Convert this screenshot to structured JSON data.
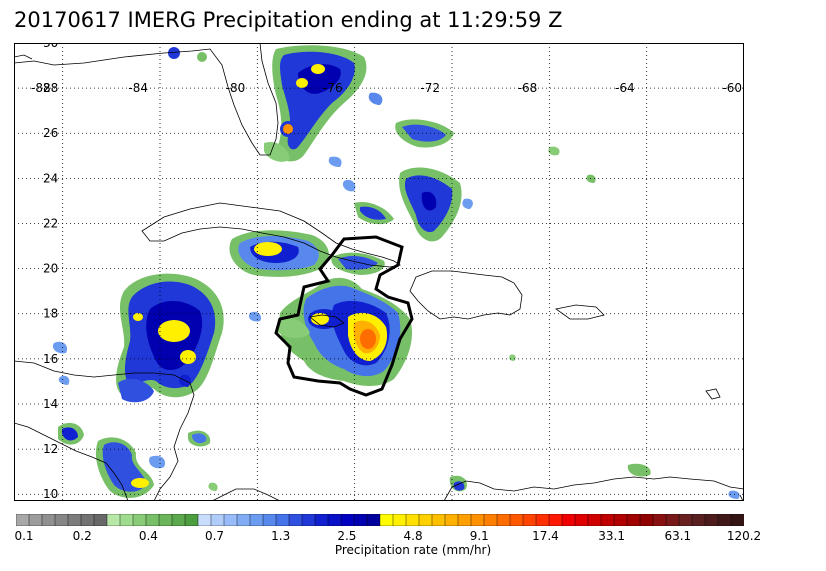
{
  "title": "20170617 IMERG Precipitation ending at 11:29:59 Z",
  "map": {
    "lon_range": [
      -90,
      -60
    ],
    "lat_range": [
      9.7,
      30
    ],
    "lon_ticks": [
      -88,
      -84,
      -80,
      -76,
      -72,
      -68,
      -64,
      -60
    ],
    "lat_ticks": [
      10,
      12,
      14,
      16,
      18,
      20,
      22,
      24,
      26,
      28,
      30
    ],
    "grid": "dotted"
  },
  "colorbar": {
    "title": "Precipitation rate (mm/hr)",
    "labels": [
      "0.1",
      "0.2",
      "0.4",
      "0.7",
      "1.3",
      "2.5",
      "4.8",
      "9.1",
      "17.4",
      "33.1",
      "63.1",
      "120.2"
    ],
    "colors": [
      "#a8a8a8",
      "#9c9c9c",
      "#909090",
      "#868686",
      "#7c7c7c",
      "#727272",
      "#686868",
      "#b8e8a8",
      "#a0dc90",
      "#88cc78",
      "#78c068",
      "#6cb45c",
      "#5ca84c",
      "#4c9c40",
      "#c8dcfc",
      "#b0ccf8",
      "#98bcf8",
      "#80acf4",
      "#6c9cf0",
      "#5888ec",
      "#4474e8",
      "#3050e0",
      "#2038d8",
      "#1020d0",
      "#0810c8",
      "#0000c0",
      "#0000b0",
      "#00009c",
      "#fffc00",
      "#fff000",
      "#ffe000",
      "#ffd000",
      "#ffc000",
      "#ffb000",
      "#ffa000",
      "#ff9000",
      "#ff8000",
      "#ff6c00",
      "#ff5800",
      "#ff4400",
      "#ff3000",
      "#ff1800",
      "#f00000",
      "#e00000",
      "#d00000",
      "#c00000",
      "#b00000",
      "#a00000",
      "#900000",
      "#881010",
      "#781818",
      "#682020",
      "#582020",
      "#4c1c1c",
      "#401818",
      "#341414"
    ]
  }
}
